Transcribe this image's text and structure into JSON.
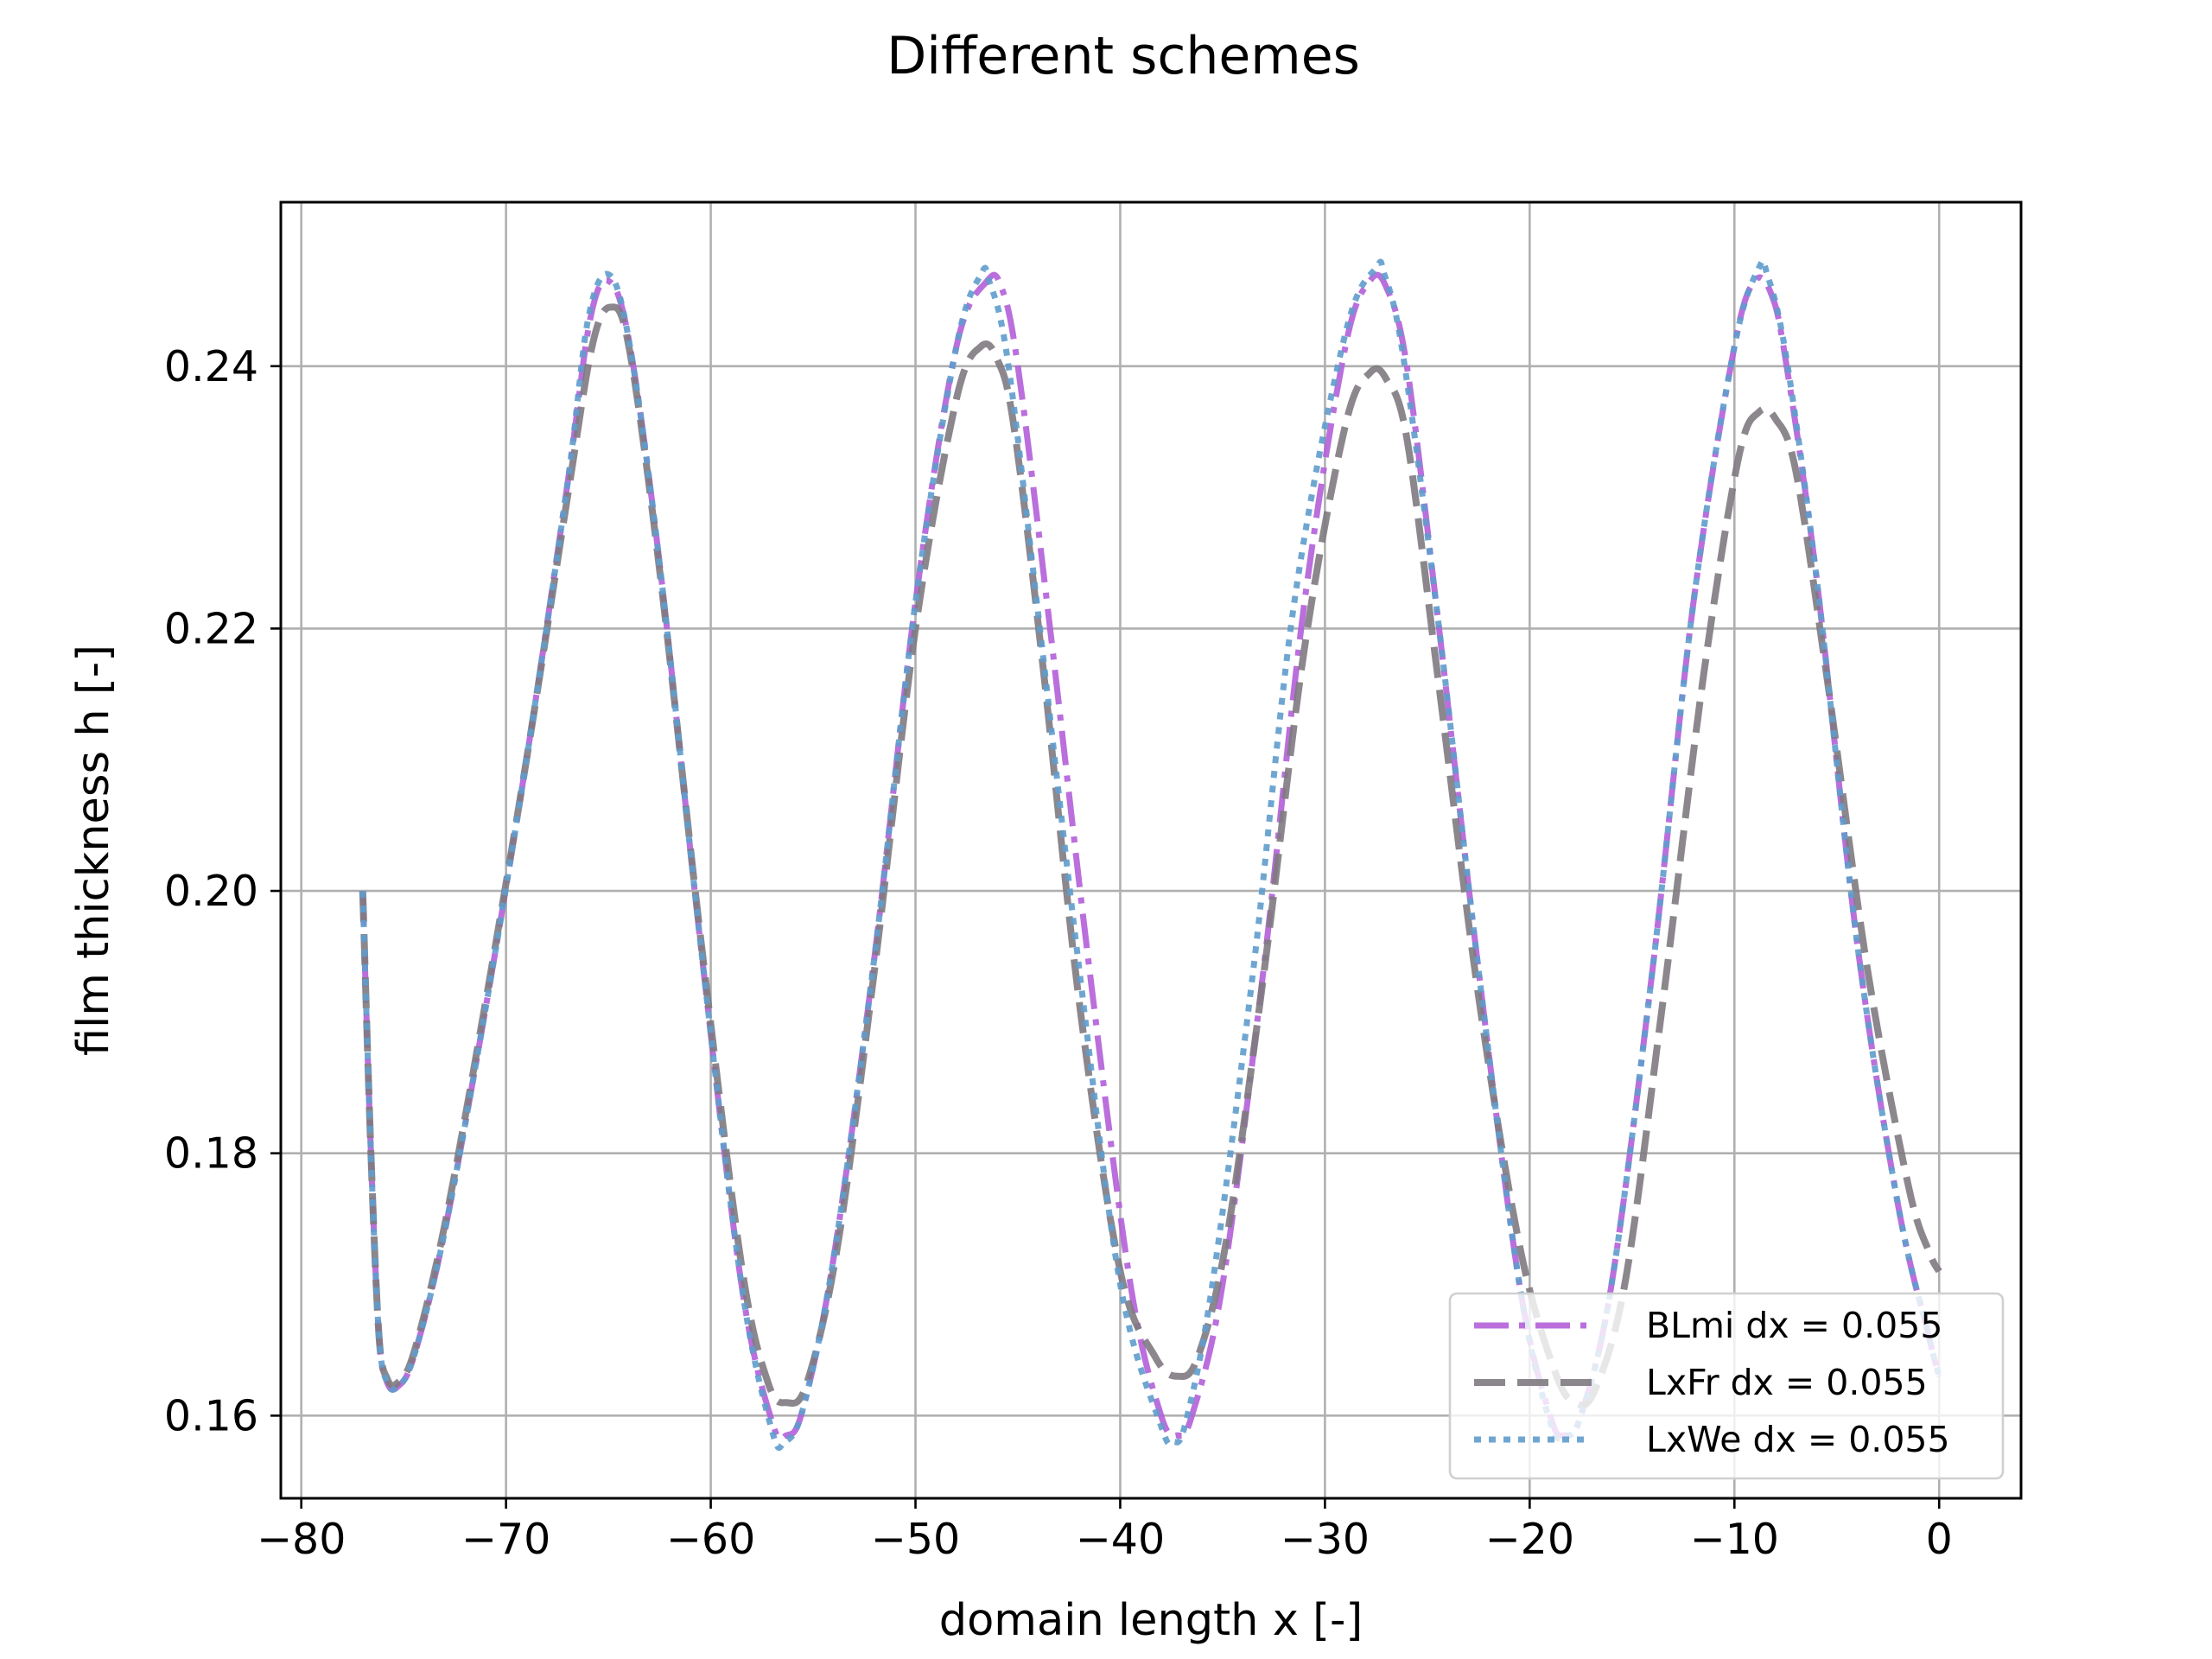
{
  "chart_data": {
    "type": "line",
    "title": "Different schemes",
    "xlabel": "domain length x [-]",
    "ylabel": "film thickness h [-]",
    "xlim": [
      -81,
      4
    ],
    "ylim": [
      0.1537,
      0.2525
    ],
    "xticks": [
      -80,
      -70,
      -60,
      -50,
      -40,
      -30,
      -20,
      -10,
      0
    ],
    "xtick_labels": [
      "−80",
      "−70",
      "−60",
      "−50",
      "−40",
      "−30",
      "−20",
      "−10",
      "0"
    ],
    "yticks": [
      0.16,
      0.18,
      0.2,
      0.22,
      0.24
    ],
    "ytick_labels": [
      "0.16",
      "0.18",
      "0.20",
      "0.22",
      "0.24"
    ],
    "grid": true,
    "legend_position": "bottom-right",
    "series": [
      {
        "name": "BLmi dx = 0.055",
        "color": "#b25fd8",
        "linestyle": "dashdot",
        "x": [
          -77.0,
          -76.6,
          -76.2,
          -75.8,
          -75.3,
          -74.5,
          -73.0,
          -71.0,
          -69.0,
          -67.0,
          -65.9,
          -65.0,
          -64.0,
          -62.5,
          -60.5,
          -58.5,
          -57.0,
          -56.3,
          -55.5,
          -54.0,
          -52.0,
          -50.0,
          -48.0,
          -46.5,
          -45.8,
          -45.0,
          -43.5,
          -41.5,
          -39.5,
          -38.0,
          -37.2,
          -36.5,
          -35.0,
          -33.0,
          -31.0,
          -29.0,
          -27.8,
          -27.0,
          -26.0,
          -24.5,
          -22.5,
          -20.5,
          -19.0,
          -18.3,
          -17.5,
          -16.0,
          -14.0,
          -12.0,
          -10.0,
          -9.0,
          -8.2,
          -7.5,
          -6.0,
          -4.0,
          -2.0,
          -0.5,
          0.0
        ],
        "y": [
          0.2,
          0.18,
          0.166,
          0.1625,
          0.1622,
          0.1645,
          0.174,
          0.191,
          0.21,
          0.231,
          0.2435,
          0.2465,
          0.242,
          0.225,
          0.196,
          0.17,
          0.1595,
          0.1585,
          0.1605,
          0.172,
          0.195,
          0.222,
          0.2415,
          0.2465,
          0.246,
          0.24,
          0.221,
          0.194,
          0.17,
          0.16,
          0.1585,
          0.16,
          0.17,
          0.194,
          0.222,
          0.2415,
          0.2465,
          0.246,
          0.24,
          0.221,
          0.194,
          0.17,
          0.16,
          0.1585,
          0.16,
          0.17,
          0.194,
          0.222,
          0.2415,
          0.2465,
          0.2455,
          0.2405,
          0.224,
          0.196,
          0.176,
          0.166,
          0.163
        ]
      },
      {
        "name": "LxFr dx = 0.055",
        "color": "#7f7a80",
        "linestyle": "dashed",
        "x": [
          -77.0,
          -76.6,
          -76.2,
          -75.8,
          -75.3,
          -74.5,
          -73.0,
          -71.0,
          -69.0,
          -67.0,
          -65.8,
          -64.9,
          -64.0,
          -62.5,
          -60.5,
          -58.5,
          -57.2,
          -56.3,
          -55.3,
          -53.8,
          -52.0,
          -50.0,
          -48.0,
          -46.8,
          -46.0,
          -45.2,
          -43.8,
          -42.0,
          -40.0,
          -38.3,
          -37.2,
          -36.2,
          -34.8,
          -33.0,
          -31.0,
          -29.0,
          -27.8,
          -27.0,
          -26.0,
          -24.5,
          -22.5,
          -20.5,
          -18.8,
          -17.8,
          -16.8,
          -15.3,
          -13.5,
          -11.5,
          -9.8,
          -8.8,
          -8.0,
          -7.0,
          -5.5,
          -3.5,
          -1.5,
          -0.5,
          0.0
        ],
        "y": [
          0.2,
          0.18,
          0.166,
          0.1628,
          0.1625,
          0.1648,
          0.1745,
          0.1915,
          0.21,
          0.23,
          0.2415,
          0.2445,
          0.2415,
          0.2245,
          0.1965,
          0.1715,
          0.1625,
          0.161,
          0.1625,
          0.173,
          0.194,
          0.22,
          0.2375,
          0.2415,
          0.2405,
          0.2355,
          0.2175,
          0.1915,
          0.171,
          0.1645,
          0.163,
          0.1645,
          0.1735,
          0.1935,
          0.2185,
          0.2355,
          0.2395,
          0.239,
          0.2345,
          0.2165,
          0.192,
          0.173,
          0.1635,
          0.161,
          0.162,
          0.1705,
          0.1915,
          0.2165,
          0.233,
          0.2365,
          0.236,
          0.232,
          0.2165,
          0.194,
          0.1775,
          0.1725,
          0.171
        ]
      },
      {
        "name": "LxWe dx = 0.055",
        "color": "#5f9ccc",
        "linestyle": "dotted",
        "x": [
          -77.0,
          -76.6,
          -76.2,
          -75.8,
          -75.3,
          -74.5,
          -73.0,
          -71.0,
          -69.0,
          -67.0,
          -66.0,
          -65.0,
          -64.0,
          -62.5,
          -60.5,
          -58.5,
          -57.0,
          -56.4,
          -55.5,
          -54.0,
          -52.0,
          -50.0,
          -48.0,
          -46.8,
          -46.4,
          -45.5,
          -44.0,
          -42.0,
          -40.0,
          -38.0,
          -37.4,
          -36.8,
          -35.5,
          -33.5,
          -31.5,
          -29.0,
          -27.5,
          -27.1,
          -26.2,
          -24.5,
          -22.5,
          -20.5,
          -19.0,
          -18.3,
          -17.5,
          -16.0,
          -14.0,
          -12.0,
          -10.0,
          -8.8,
          -8.4,
          -7.5,
          -6.0,
          -4.0,
          -2.0,
          -0.5,
          0.0
        ],
        "y": [
          0.2,
          0.18,
          0.166,
          0.1625,
          0.1622,
          0.1645,
          0.174,
          0.191,
          0.21,
          0.231,
          0.2435,
          0.247,
          0.242,
          0.225,
          0.196,
          0.17,
          0.1588,
          0.158,
          0.1605,
          0.172,
          0.195,
          0.222,
          0.2415,
          0.247,
          0.2465,
          0.2405,
          0.221,
          0.194,
          0.17,
          0.1592,
          0.158,
          0.1595,
          0.17,
          0.194,
          0.222,
          0.2425,
          0.2475,
          0.247,
          0.241,
          0.221,
          0.194,
          0.17,
          0.1595,
          0.1585,
          0.16,
          0.17,
          0.194,
          0.222,
          0.2415,
          0.2475,
          0.247,
          0.241,
          0.224,
          0.196,
          0.176,
          0.166,
          0.163
        ]
      }
    ]
  }
}
